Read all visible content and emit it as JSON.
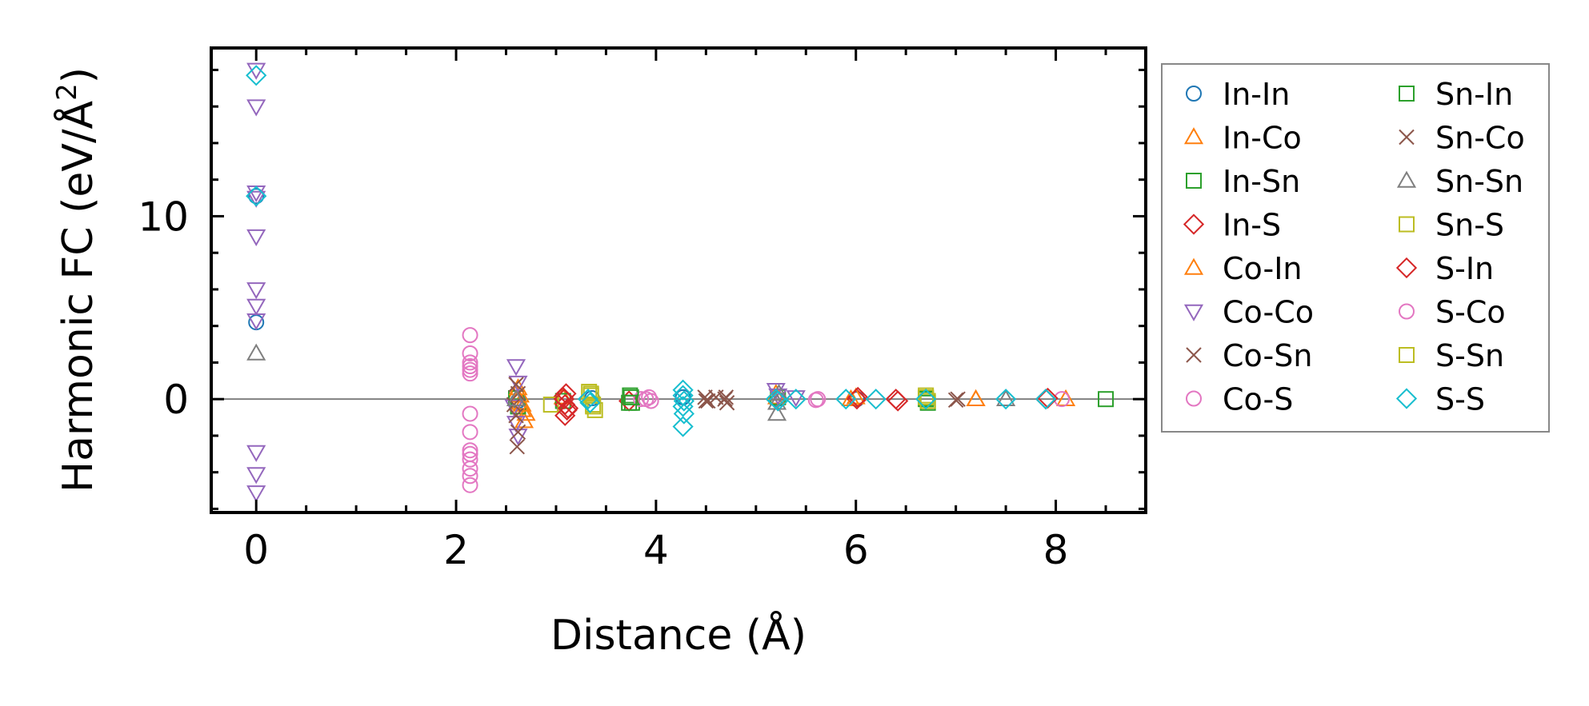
{
  "chart_data": {
    "type": "scatter",
    "title": "",
    "xlabel": "Distance (Å)",
    "ylabel_main": "Harmonic FC (eV/Å",
    "ylabel_sup": "2",
    "ylabel_close": ")",
    "xlim": [
      -0.45,
      8.9
    ],
    "ylim": [
      -6.2,
      19.2
    ],
    "x_ticks": [
      0,
      2,
      4,
      6,
      8
    ],
    "x_tick_labels": [
      "0",
      "2",
      "4",
      "6",
      "8"
    ],
    "y_ticks": [
      0,
      10
    ],
    "y_tick_labels": [
      "0",
      "10"
    ],
    "x_minor_step": 0.5,
    "y_minor_step": 2,
    "grid": false,
    "zero_line": true,
    "legend_position": "outside right",
    "series": [
      {
        "name": "In-In",
        "marker": "circle",
        "color": "#1f77b4",
        "points": [
          [
            0,
            11.1
          ],
          [
            0,
            4.2
          ],
          [
            2.62,
            -0.1
          ],
          [
            3.36,
            0.05
          ],
          [
            4.27,
            0.1
          ],
          [
            5.21,
            0.0
          ],
          [
            6.01,
            0.0
          ]
        ]
      },
      {
        "name": "In-Co",
        "marker": "triangle-up",
        "color": "#ff7f0e",
        "points": [
          [
            2.6,
            0.3
          ],
          [
            2.64,
            -0.2
          ],
          [
            2.66,
            -0.6
          ],
          [
            2.68,
            -1.2
          ],
          [
            3.07,
            0.1
          ],
          [
            5.21,
            0.1
          ],
          [
            5.95,
            0.0
          ],
          [
            7.2,
            0.0
          ]
        ]
      },
      {
        "name": "In-Sn",
        "marker": "square",
        "color": "#2ca02c",
        "points": [
          [
            2.6,
            0.05
          ],
          [
            2.62,
            -0.4
          ],
          [
            3.07,
            -0.1
          ],
          [
            3.74,
            0.2
          ],
          [
            3.76,
            -0.2
          ],
          [
            5.22,
            0.1
          ],
          [
            6.7,
            0.0
          ],
          [
            6.72,
            -0.2
          ],
          [
            8.5,
            0.0
          ]
        ]
      },
      {
        "name": "In-S",
        "marker": "diamond",
        "color": "#d62728",
        "points": [
          [
            3.07,
            0.1
          ],
          [
            3.09,
            -0.3
          ],
          [
            3.11,
            -0.6
          ],
          [
            3.73,
            -0.1
          ],
          [
            6.01,
            0.0
          ],
          [
            6.4,
            0.0
          ],
          [
            7.9,
            0.0
          ]
        ]
      },
      {
        "name": "Co-In",
        "marker": "triangle-up",
        "color": "#ff7f0e",
        "points": [
          [
            2.62,
            0.6
          ],
          [
            2.64,
            0.2
          ],
          [
            2.66,
            -0.3
          ],
          [
            2.7,
            -0.8
          ],
          [
            5.2,
            0.3
          ],
          [
            6.0,
            0.1
          ],
          [
            7.2,
            0.0
          ],
          [
            8.1,
            0.0
          ]
        ]
      },
      {
        "name": "Co-Co",
        "marker": "triangle-down",
        "color": "#9467bd",
        "points": [
          [
            0,
            18.0
          ],
          [
            0,
            16.0
          ],
          [
            0,
            11.3
          ],
          [
            0,
            11.0
          ],
          [
            0,
            8.9
          ],
          [
            0,
            6.0
          ],
          [
            0,
            5.1
          ],
          [
            0,
            4.3
          ],
          [
            0,
            -2.9
          ],
          [
            0,
            -4.1
          ],
          [
            0,
            -5.1
          ],
          [
            2.6,
            1.8
          ],
          [
            2.62,
            0.9
          ],
          [
            2.58,
            -0.4
          ],
          [
            2.6,
            -1.3
          ],
          [
            2.62,
            -2.0
          ],
          [
            5.2,
            0.5
          ],
          [
            5.22,
            0.2
          ],
          [
            5.4,
            0.1
          ]
        ]
      },
      {
        "name": "Co-Sn",
        "marker": "x",
        "color": "#8c564b",
        "points": [
          [
            2.6,
            0.8
          ],
          [
            2.62,
            0.3
          ],
          [
            2.58,
            -0.3
          ],
          [
            2.6,
            -0.9
          ],
          [
            2.62,
            -1.8
          ],
          [
            2.61,
            -2.6
          ],
          [
            4.49,
            0.1
          ],
          [
            4.52,
            -0.1
          ],
          [
            4.6,
            0.1
          ],
          [
            4.69,
            0.0
          ],
          [
            4.71,
            -0.2
          ],
          [
            7.02,
            0.0
          ]
        ]
      },
      {
        "name": "Co-S",
        "marker": "circle",
        "color": "#e377c2",
        "points": [
          [
            2.14,
            3.5
          ],
          [
            2.14,
            2.5
          ],
          [
            2.14,
            2.0
          ],
          [
            2.14,
            1.6
          ],
          [
            2.14,
            1.4
          ],
          [
            2.14,
            -0.8
          ],
          [
            2.14,
            -1.8
          ],
          [
            2.14,
            -2.8
          ],
          [
            2.14,
            -3.3
          ],
          [
            2.14,
            -3.8
          ],
          [
            2.14,
            -4.2
          ],
          [
            2.14,
            -4.7
          ],
          [
            3.85,
            0.0
          ],
          [
            3.93,
            0.1
          ],
          [
            3.95,
            -0.1
          ],
          [
            5.62,
            0.0
          ],
          [
            8.06,
            0.0
          ]
        ]
      },
      {
        "name": "Sn-In",
        "marker": "square",
        "color": "#2ca02c",
        "points": [
          [
            3.75,
            0.1
          ],
          [
            3.73,
            -0.2
          ],
          [
            6.7,
            0.05
          ]
        ]
      },
      {
        "name": "Sn-Co",
        "marker": "x",
        "color": "#8c564b",
        "points": [
          [
            4.5,
            -0.1
          ],
          [
            4.7,
            0.1
          ],
          [
            7.0,
            -0.05
          ]
        ]
      },
      {
        "name": "Sn-Sn",
        "marker": "triangle-up",
        "color": "#7f7f7f",
        "points": [
          [
            0,
            2.5
          ],
          [
            2.6,
            0.0
          ],
          [
            5.21,
            -0.2
          ],
          [
            5.21,
            -0.8
          ],
          [
            5.23,
            0.3
          ],
          [
            7.5,
            0.0
          ]
        ]
      },
      {
        "name": "Sn-S",
        "marker": "square",
        "color": "#bcbd22",
        "points": [
          [
            2.95,
            -0.3
          ],
          [
            3.33,
            0.4
          ],
          [
            3.35,
            0.2
          ],
          [
            3.37,
            -0.3
          ],
          [
            3.39,
            -0.6
          ],
          [
            6.7,
            0.2
          ],
          [
            6.72,
            -0.1
          ]
        ]
      },
      {
        "name": "S-In",
        "marker": "diamond",
        "color": "#d62728",
        "points": [
          [
            3.1,
            0.3
          ],
          [
            3.08,
            0.0
          ],
          [
            3.12,
            -0.5
          ],
          [
            3.09,
            -0.9
          ],
          [
            6.02,
            0.1
          ],
          [
            6.42,
            -0.1
          ],
          [
            7.92,
            0.05
          ]
        ]
      },
      {
        "name": "S-Co",
        "marker": "circle",
        "color": "#e377c2",
        "points": [
          [
            2.14,
            1.8
          ],
          [
            2.14,
            -3.0
          ],
          [
            3.9,
            0.0
          ],
          [
            5.6,
            -0.05
          ]
        ]
      },
      {
        "name": "S-Sn",
        "marker": "square",
        "color": "#bcbd22",
        "points": [
          [
            3.35,
            0.3
          ],
          [
            3.37,
            -0.4
          ],
          [
            6.7,
            0.1
          ]
        ]
      },
      {
        "name": "S-S",
        "marker": "diamond",
        "color": "#17becf",
        "points": [
          [
            0,
            17.7
          ],
          [
            0,
            11.1
          ],
          [
            3.32,
            0.0
          ],
          [
            3.34,
            -0.2
          ],
          [
            4.27,
            0.5
          ],
          [
            4.27,
            0.2
          ],
          [
            4.28,
            -0.1
          ],
          [
            4.27,
            -0.4
          ],
          [
            4.28,
            -0.8
          ],
          [
            4.27,
            -1.5
          ],
          [
            5.2,
            0.0
          ],
          [
            5.22,
            -0.1
          ],
          [
            5.4,
            0.0
          ],
          [
            5.9,
            0.0
          ],
          [
            6.2,
            0.0
          ],
          [
            6.7,
            0.0
          ],
          [
            7.5,
            0.0
          ],
          [
            7.9,
            0.0
          ]
        ]
      }
    ]
  }
}
